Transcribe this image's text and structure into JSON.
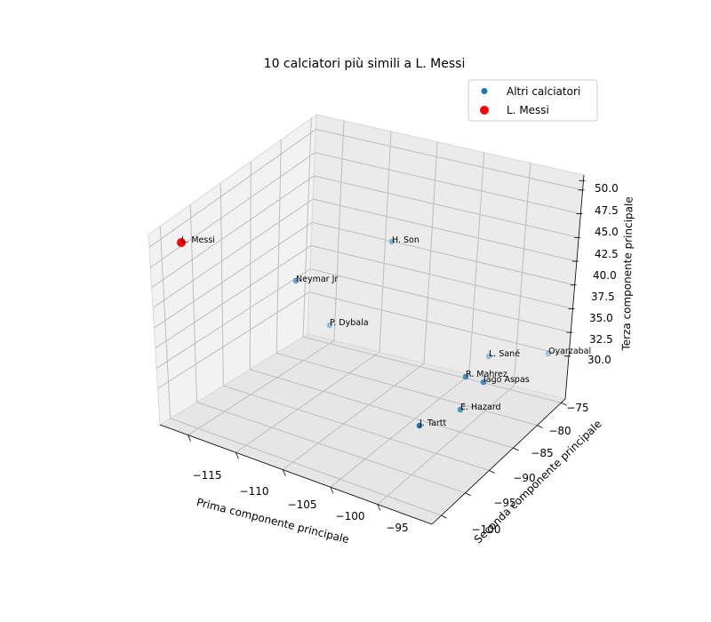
{
  "chart_data": {
    "type": "scatter",
    "title": "10 calciatori più simili a L. Messi",
    "xlabel": "Prima componente principale",
    "ylabel": "Seconda componente principale",
    "zlabel": "Terza componente principale",
    "xticks": [
      "−115",
      "−110",
      "−105",
      "−100",
      "−95"
    ],
    "yticks": [
      "−75",
      "−80",
      "−85",
      "−90",
      "−95",
      "−100"
    ],
    "zticks": [
      "30.0",
      "32.5",
      "35.0",
      "37.5",
      "40.0",
      "42.5",
      "45.0",
      "47.5",
      "50.0"
    ],
    "legend": {
      "position": "top-right",
      "entries": [
        {
          "label": "Altri calciatori",
          "color": "#1f77b4"
        },
        {
          "label": "L. Messi",
          "color": "#ff0000"
        }
      ]
    },
    "grid": true,
    "series": [
      {
        "name": "Altri calciatori",
        "color": "#1f77b4",
        "points": [
          {
            "label": "H. Son"
          },
          {
            "label": "Neymar Jr"
          },
          {
            "label": "P. Dybala"
          },
          {
            "label": "L. Sané"
          },
          {
            "label": "Oyarzabal"
          },
          {
            "label": "R. Mahrez"
          },
          {
            "label": "Iago Aspas"
          },
          {
            "label": "E. Hazard"
          },
          {
            "label": "J. Tartt"
          }
        ]
      },
      {
        "name": "L. Messi",
        "color": "#ff0000",
        "points": [
          {
            "label": "L. Messi"
          }
        ]
      }
    ]
  }
}
